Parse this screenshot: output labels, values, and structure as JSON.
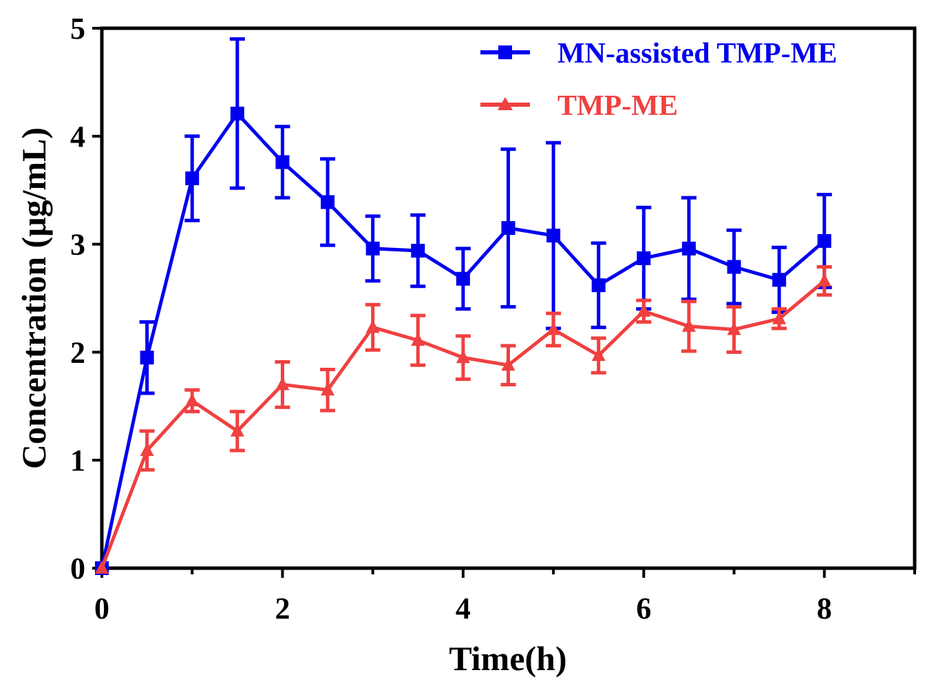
{
  "chart_data": {
    "type": "line",
    "title": "",
    "xlabel": "Time(h)",
    "ylabel": "Concentration (μg/mL)",
    "xlim": [
      0,
      9
    ],
    "ylim": [
      0,
      5
    ],
    "xticks": [
      0,
      2,
      4,
      6,
      8
    ],
    "yticks": [
      0,
      1,
      2,
      3,
      4,
      5
    ],
    "xtick_labels": [
      "0",
      "2",
      "4",
      "6",
      "8"
    ],
    "ytick_labels": [
      "0",
      "1",
      "2",
      "3",
      "4",
      "5"
    ],
    "legend_position": "top-right",
    "series": [
      {
        "name": "MN-assisted TMP-ME",
        "color": "#0000ee",
        "marker": "square",
        "x": [
          0,
          0.5,
          1,
          1.5,
          2,
          2.5,
          3,
          3.5,
          4,
          4.5,
          5,
          5.5,
          6,
          6.5,
          7,
          7.5,
          8
        ],
        "y": [
          0,
          1.95,
          3.61,
          4.21,
          3.76,
          3.39,
          2.96,
          2.94,
          2.68,
          3.15,
          3.08,
          2.62,
          2.87,
          2.96,
          2.79,
          2.67,
          3.03
        ],
        "error": [
          0,
          0.33,
          0.39,
          0.69,
          0.33,
          0.4,
          0.3,
          0.33,
          0.28,
          0.73,
          0.86,
          0.39,
          0.47,
          0.47,
          0.34,
          0.3,
          0.43
        ]
      },
      {
        "name": "TMP-ME",
        "color": "#f04040",
        "marker": "triangle",
        "x": [
          0,
          0.5,
          1,
          1.5,
          2,
          2.5,
          3,
          3.5,
          4,
          4.5,
          5,
          5.5,
          6,
          6.5,
          7,
          7.5,
          8
        ],
        "y": [
          0,
          1.09,
          1.55,
          1.27,
          1.7,
          1.65,
          2.23,
          2.11,
          1.95,
          1.88,
          2.21,
          1.97,
          2.38,
          2.24,
          2.21,
          2.31,
          2.66
        ],
        "error": [
          0,
          0.18,
          0.1,
          0.18,
          0.21,
          0.19,
          0.21,
          0.23,
          0.2,
          0.18,
          0.15,
          0.16,
          0.1,
          0.23,
          0.21,
          0.09,
          0.13
        ]
      }
    ]
  }
}
